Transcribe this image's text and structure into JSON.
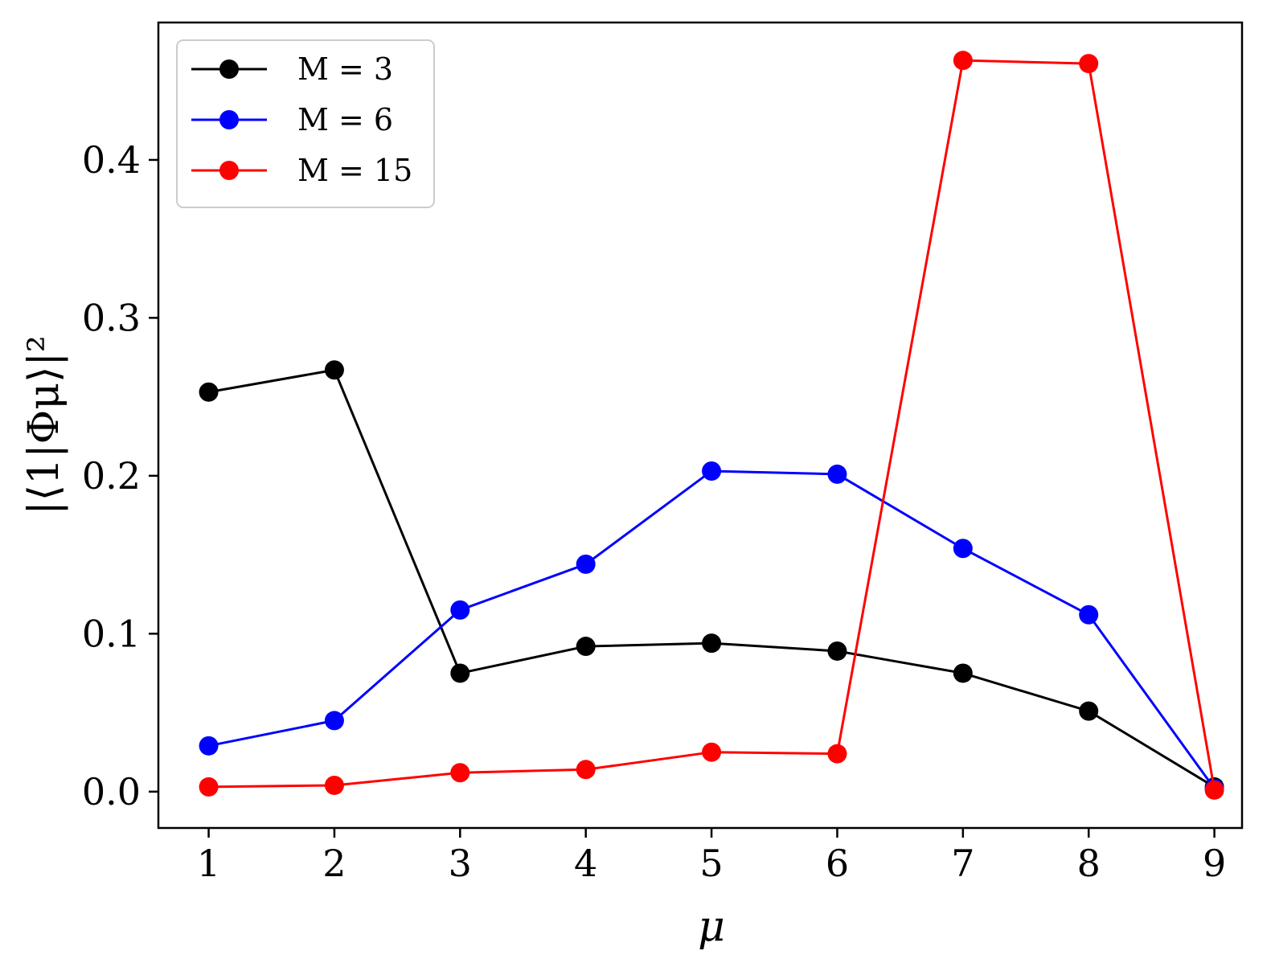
{
  "chart_data": {
    "type": "line",
    "title": "",
    "xlabel": "μ",
    "ylabel": "|⟨1|Φμ⟩|²",
    "x": [
      1,
      2,
      3,
      4,
      5,
      6,
      7,
      8,
      9
    ],
    "xlim": [
      0.6,
      9.22
    ],
    "ylim": [
      -0.023,
      0.487
    ],
    "xticks": [
      1,
      2,
      3,
      4,
      5,
      6,
      7,
      8,
      9
    ],
    "yticks": [
      0.0,
      0.1,
      0.2,
      0.3,
      0.4
    ],
    "ytick_labels": [
      "0.0",
      "0.1",
      "0.2",
      "0.3",
      "0.4"
    ],
    "grid": false,
    "legend_position": "top-left",
    "series": [
      {
        "name": "M = 3",
        "color": "#000000",
        "values": [
          0.253,
          0.267,
          0.075,
          0.092,
          0.094,
          0.089,
          0.075,
          0.051,
          0.003
        ]
      },
      {
        "name": "M = 6",
        "color": "#0000ff",
        "values": [
          0.029,
          0.045,
          0.115,
          0.144,
          0.203,
          0.201,
          0.154,
          0.112,
          0.002
        ]
      },
      {
        "name": "M = 15",
        "color": "#ff0000",
        "values": [
          0.003,
          0.004,
          0.012,
          0.014,
          0.025,
          0.024,
          0.463,
          0.461,
          0.001
        ]
      }
    ]
  }
}
